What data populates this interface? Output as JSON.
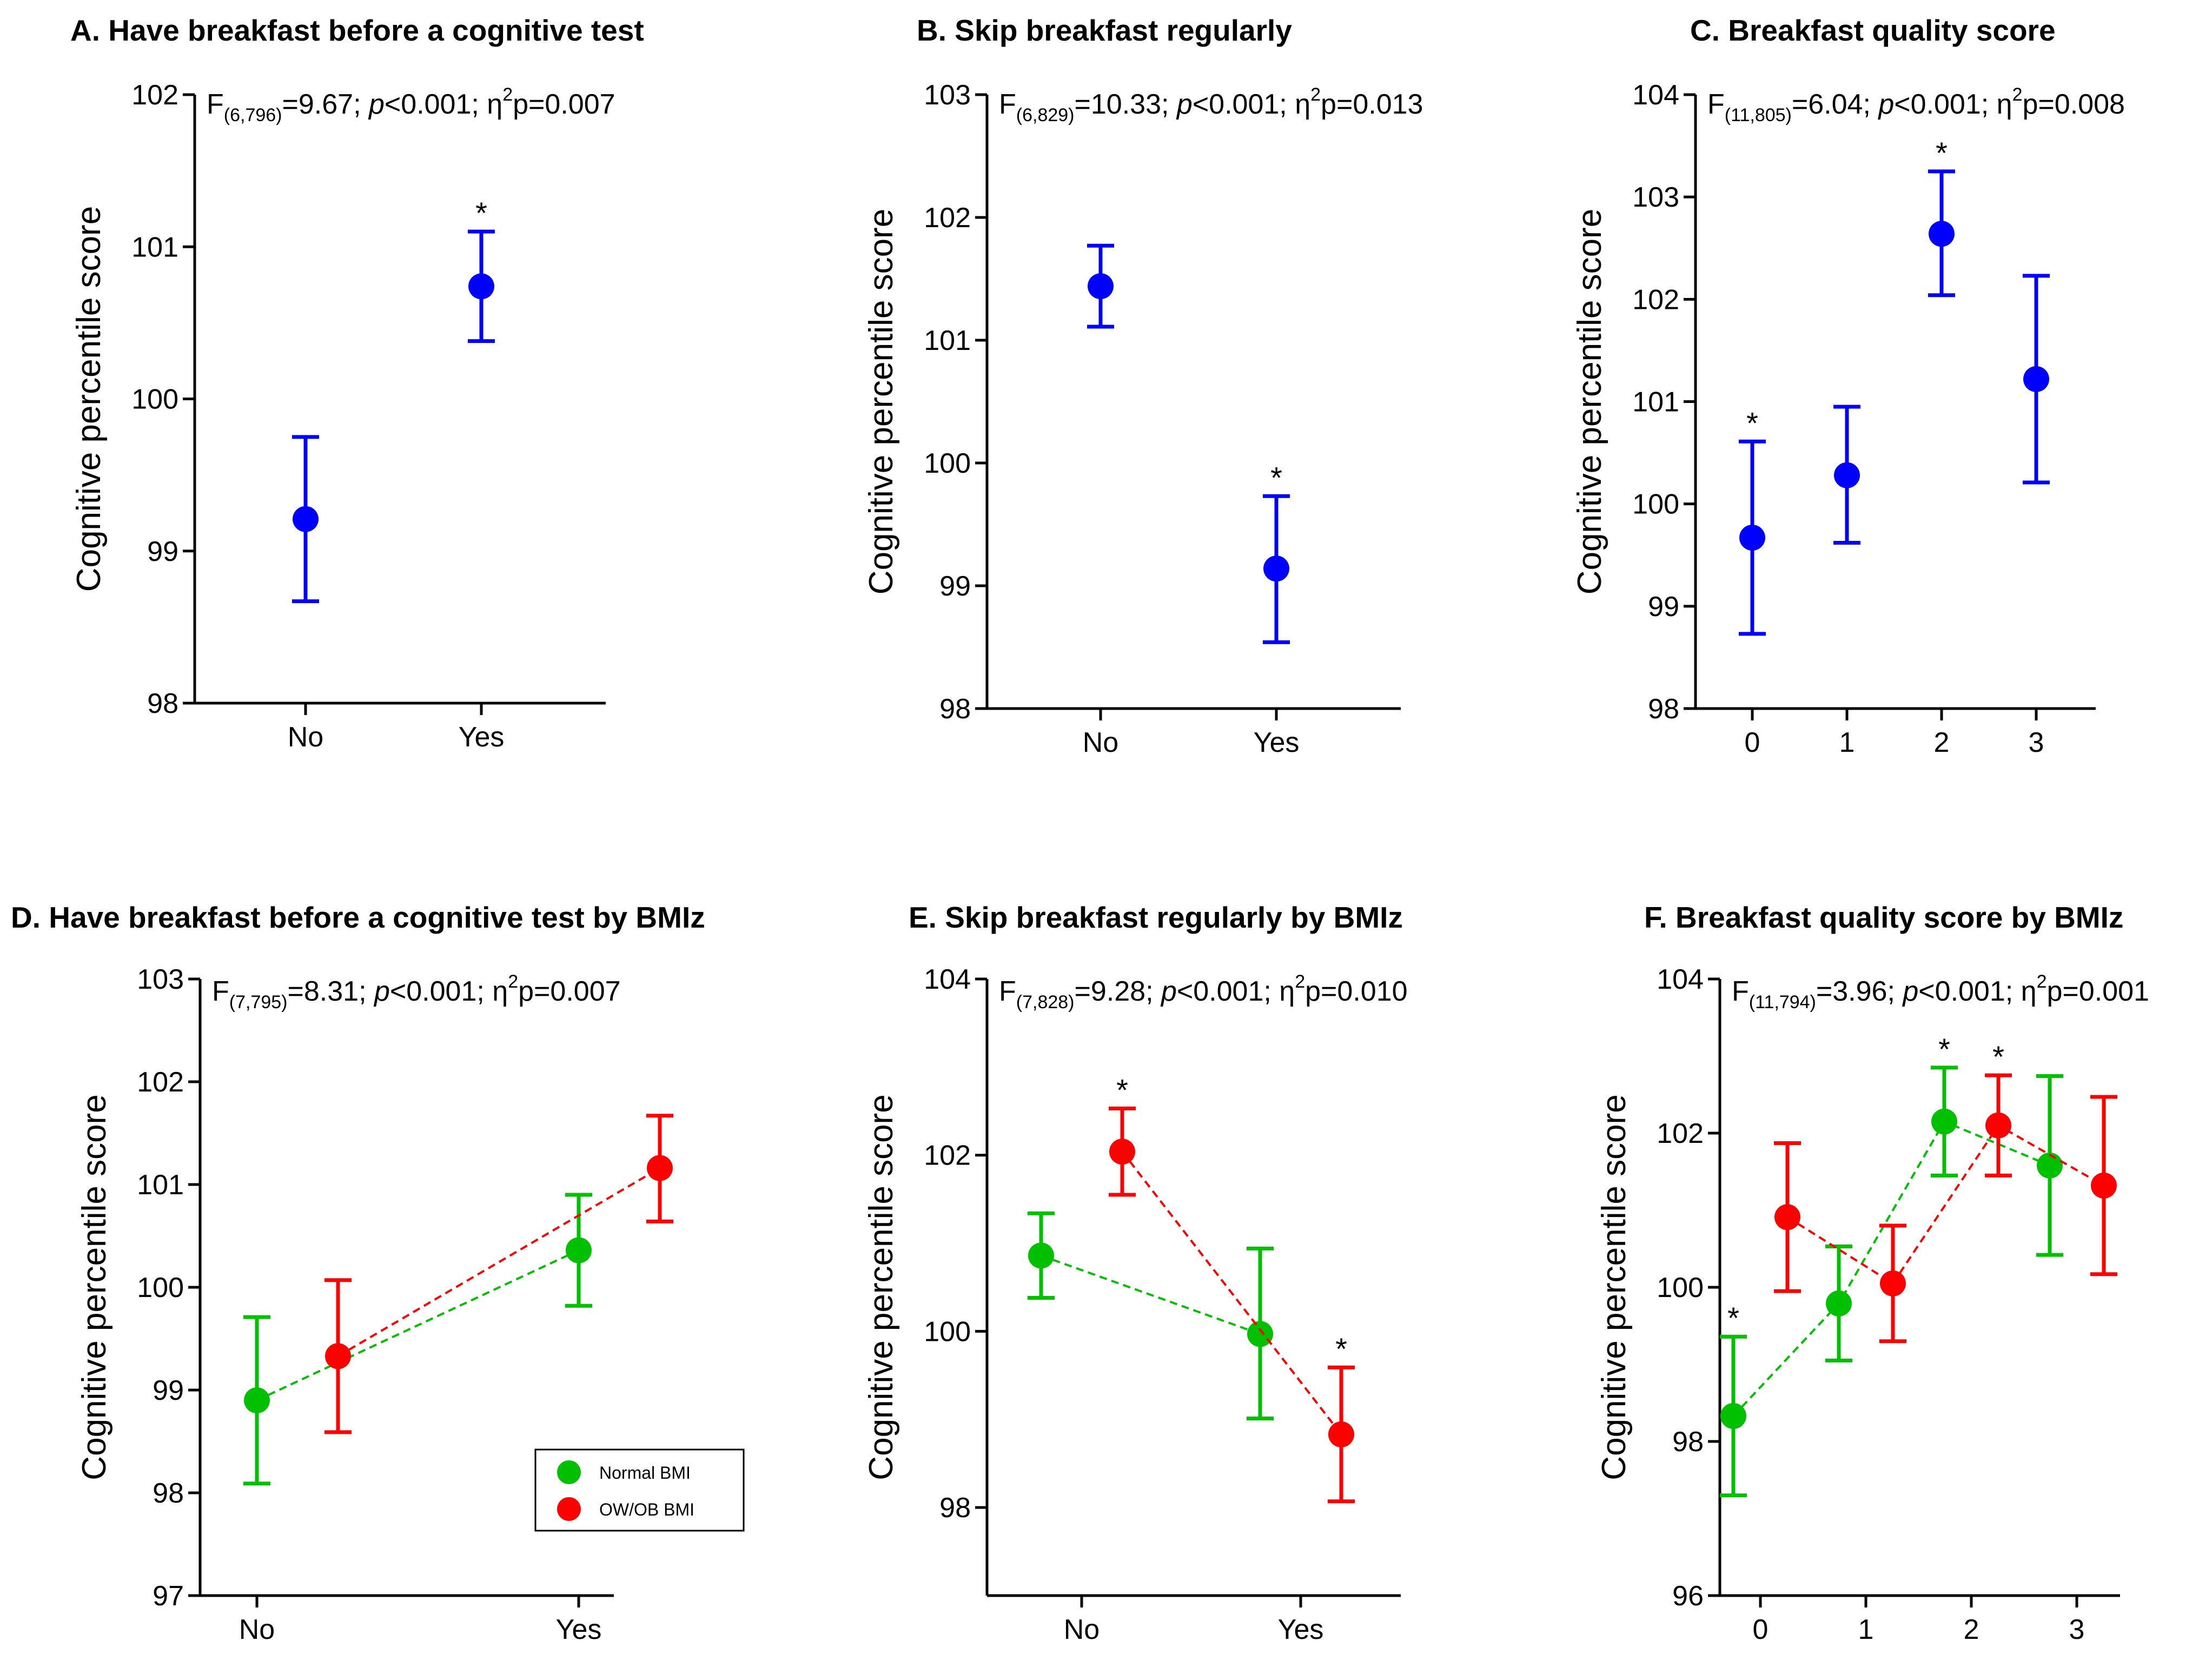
{
  "chart_data": [
    {
      "panel": "A",
      "type": "scatter",
      "title": "A. Have breakfast before a cognitive test",
      "ylabel": "Cognitive percentile score",
      "categories": [
        "No",
        "Yes"
      ],
      "ylim": [
        98,
        102
      ],
      "yticks": [
        98,
        99,
        100,
        101,
        102
      ],
      "annotation": {
        "main": "F",
        "sub": "(6,796)",
        "rest": "=9.67; ",
        "p": "p",
        "pval": "<0.001; η",
        "sup": "2",
        "eff": "p=0.007"
      },
      "series": [
        {
          "color": "#0000ff",
          "points": [
            {
              "cat": "No",
              "y": 99.21,
              "lo": 98.67,
              "hi": 99.75,
              "star": false
            },
            {
              "cat": "Yes",
              "y": 100.74,
              "lo": 100.38,
              "hi": 101.1,
              "star": true
            }
          ]
        }
      ]
    },
    {
      "panel": "B",
      "type": "scatter",
      "title": "B. Skip breakfast regularly",
      "ylabel": "Cognitive percentile score",
      "categories": [
        "No",
        "Yes"
      ],
      "ylim": [
        98,
        103
      ],
      "yticks": [
        98,
        99,
        100,
        101,
        102,
        103
      ],
      "annotation": {
        "main": "F",
        "sub": "(6,829)",
        "rest": "=10.33; ",
        "p": "p",
        "pval": "<0.001; η",
        "sup": "2",
        "eff": "p=0.013"
      },
      "series": [
        {
          "color": "#0000ff",
          "points": [
            {
              "cat": "No",
              "y": 101.44,
              "lo": 101.11,
              "hi": 101.77,
              "star": false
            },
            {
              "cat": "Yes",
              "y": 99.14,
              "lo": 98.54,
              "hi": 99.73,
              "star": true
            }
          ]
        }
      ]
    },
    {
      "panel": "C",
      "type": "scatter",
      "title": "C. Breakfast quality score",
      "ylabel": "Cognitive percentile score",
      "categories": [
        "0",
        "1",
        "2",
        "3"
      ],
      "ylim": [
        98,
        104
      ],
      "yticks": [
        98,
        99,
        100,
        101,
        102,
        103,
        104
      ],
      "annotation": {
        "main": "F",
        "sub": "(11,805)",
        "rest": "=6.04; ",
        "p": "p",
        "pval": "<0.001; η",
        "sup": "2",
        "eff": "p=0.008"
      },
      "series": [
        {
          "color": "#0000ff",
          "points": [
            {
              "cat": "0",
              "y": 99.67,
              "lo": 98.73,
              "hi": 100.61,
              "star": true
            },
            {
              "cat": "1",
              "y": 100.28,
              "lo": 99.62,
              "hi": 100.95,
              "star": false
            },
            {
              "cat": "2",
              "y": 102.64,
              "lo": 102.04,
              "hi": 103.25,
              "star": true
            },
            {
              "cat": "3",
              "y": 101.22,
              "lo": 100.21,
              "hi": 102.23,
              "star": false
            }
          ]
        }
      ]
    },
    {
      "panel": "D",
      "type": "line",
      "title": "D. Have breakfast before a cognitive test by BMIz",
      "ylabel": "Cognitive percentile score",
      "categories": [
        "No",
        "Yes"
      ],
      "ylim": [
        97,
        103
      ],
      "yticks": [
        97,
        98,
        99,
        100,
        101,
        102,
        103
      ],
      "annotation": {
        "main": "F",
        "sub": "(7,795)",
        "rest": "=8.31; ",
        "p": "p",
        "pval": "<0.001; η",
        "sup": "2",
        "eff": "p=0.007"
      },
      "legend": {
        "placement": "bottom-right",
        "entries": [
          {
            "label": "Normal BMI",
            "color": "#00c000"
          },
          {
            "label": "OW/OB BMI",
            "color": "#ff0000"
          }
        ]
      },
      "series": [
        {
          "color": "#00c000",
          "points": [
            {
              "cat": "No",
              "y": 98.9,
              "lo": 98.09,
              "hi": 99.71,
              "star": false
            },
            {
              "cat": "Yes",
              "y": 100.36,
              "lo": 99.82,
              "hi": 100.9,
              "star": false
            }
          ]
        },
        {
          "color": "#ff0000",
          "points": [
            {
              "cat": "No",
              "y": 99.33,
              "lo": 98.59,
              "hi": 100.07,
              "star": false
            },
            {
              "cat": "Yes",
              "y": 101.16,
              "lo": 100.64,
              "hi": 101.67,
              "star": false
            }
          ]
        }
      ]
    },
    {
      "panel": "E",
      "type": "line",
      "title": "E. Skip breakfast regularly by BMIz",
      "ylabel": "Cognitive percentile score",
      "categories": [
        "No",
        "Yes"
      ],
      "ylim": [
        97,
        104
      ],
      "yticks": [
        98,
        100,
        102,
        104
      ],
      "annotation": {
        "main": "F",
        "sub": "(7,828)",
        "rest": "=9.28; ",
        "p": "p",
        "pval": "<0.001; η",
        "sup": "2",
        "eff": "p=0.010"
      },
      "series": [
        {
          "color": "#00c000",
          "points": [
            {
              "cat": "No",
              "y": 100.86,
              "lo": 100.38,
              "hi": 101.34,
              "star": false
            },
            {
              "cat": "Yes",
              "y": 99.97,
              "lo": 99.01,
              "hi": 100.94,
              "star": false
            }
          ]
        },
        {
          "color": "#ff0000",
          "points": [
            {
              "cat": "No",
              "y": 102.04,
              "lo": 101.55,
              "hi": 102.53,
              "star": true
            },
            {
              "cat": "Yes",
              "y": 98.83,
              "lo": 98.07,
              "hi": 99.59,
              "star": true
            }
          ]
        }
      ]
    },
    {
      "panel": "F",
      "type": "line",
      "title": "F. Breakfast quality score by BMIz",
      "ylabel": "Cognitive percentile score",
      "categories": [
        "0",
        "1",
        "2",
        "3"
      ],
      "ylim": [
        96,
        104
      ],
      "yticks": [
        96,
        98,
        100,
        102,
        104
      ],
      "annotation": {
        "main": "F",
        "sub": "(11,794)",
        "rest": "=3.96; ",
        "p": "p",
        "pval": "<0.001; η",
        "sup": "2",
        "eff": "p=0.001"
      },
      "series": [
        {
          "color": "#00c000",
          "points": [
            {
              "cat": "0",
              "y": 98.33,
              "lo": 97.3,
              "hi": 99.36,
              "star": true
            },
            {
              "cat": "1",
              "y": 99.79,
              "lo": 99.05,
              "hi": 100.53,
              "star": false
            },
            {
              "cat": "2",
              "y": 102.15,
              "lo": 101.45,
              "hi": 102.85,
              "star": true
            },
            {
              "cat": "3",
              "y": 101.58,
              "lo": 100.42,
              "hi": 102.74,
              "star": false
            }
          ]
        },
        {
          "color": "#ff0000",
          "points": [
            {
              "cat": "0",
              "y": 100.91,
              "lo": 99.95,
              "hi": 101.87,
              "star": false
            },
            {
              "cat": "1",
              "y": 100.05,
              "lo": 99.3,
              "hi": 100.8,
              "star": false
            },
            {
              "cat": "2",
              "y": 102.1,
              "lo": 101.45,
              "hi": 102.75,
              "star": true
            },
            {
              "cat": "3",
              "y": 101.32,
              "lo": 100.17,
              "hi": 102.47,
              "star": false
            }
          ]
        }
      ]
    }
  ]
}
